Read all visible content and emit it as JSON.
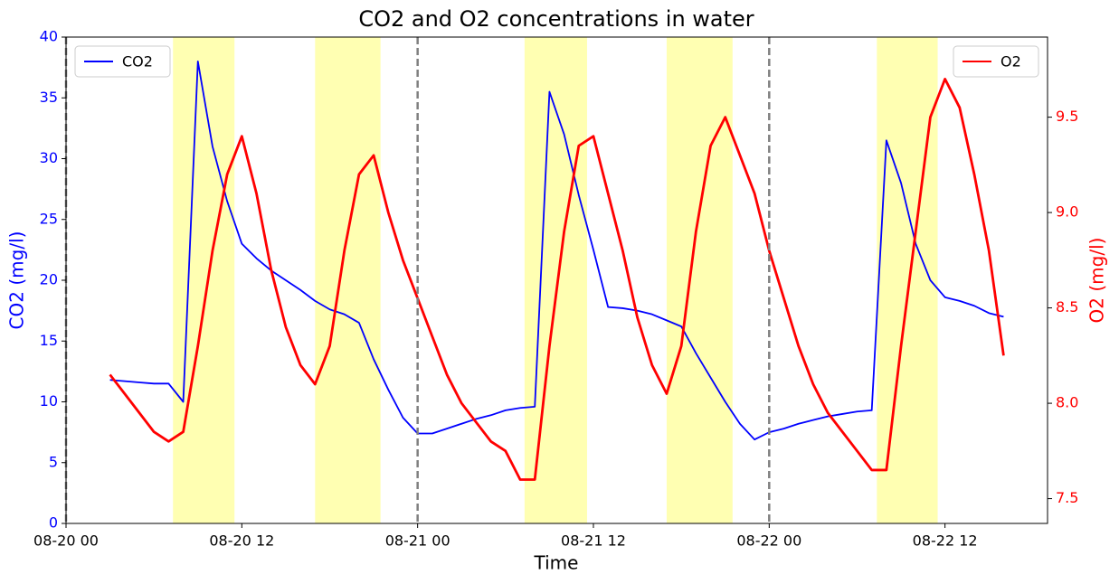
{
  "chart_data": {
    "type": "line",
    "title": "CO2 and O2 concentrations in water",
    "xlabel": "Time",
    "ylabel": "CO2 (mg/l)",
    "y2label": "O2 (mg/l)",
    "x": [
      "08-20 03",
      "08-20 04",
      "08-20 05",
      "08-20 06",
      "08-20 07",
      "08-20 08",
      "08-20 09",
      "08-20 10",
      "08-20 11",
      "08-20 12",
      "08-20 13",
      "08-20 14",
      "08-20 15",
      "08-20 16",
      "08-20 17",
      "08-20 18",
      "08-20 19",
      "08-20 20",
      "08-20 21",
      "08-20 22",
      "08-20 23",
      "08-21 00",
      "08-21 01",
      "08-21 02",
      "08-21 03",
      "08-21 04",
      "08-21 05",
      "08-21 06",
      "08-21 07",
      "08-21 08",
      "08-21 09",
      "08-21 10",
      "08-21 11",
      "08-21 12",
      "08-21 13",
      "08-21 14",
      "08-21 15",
      "08-21 16",
      "08-21 17",
      "08-21 18",
      "08-21 19",
      "08-21 20",
      "08-21 21",
      "08-21 22",
      "08-21 23",
      "08-22 00",
      "08-22 01",
      "08-22 02",
      "08-22 03",
      "08-22 04",
      "08-22 05",
      "08-22 06",
      "08-22 07",
      "08-22 08",
      "08-22 09",
      "08-22 10",
      "08-22 11",
      "08-22 12",
      "08-22 13",
      "08-22 14",
      "08-22 15",
      "08-22 16"
    ],
    "series": [
      {
        "name": "CO2",
        "color": "#0000ff",
        "axis": "y",
        "legend": "upper left",
        "values": [
          11.8,
          11.7,
          11.6,
          11.5,
          11.5,
          10.0,
          38.0,
          31.0,
          26.5,
          23.0,
          21.8,
          20.8,
          20.0,
          19.2,
          18.3,
          17.6,
          17.2,
          16.5,
          13.5,
          11.0,
          8.7,
          7.4,
          7.4,
          7.8,
          8.2,
          8.6,
          8.9,
          9.3,
          9.5,
          9.6,
          35.5,
          32.0,
          27.0,
          22.5,
          17.8,
          17.7,
          17.5,
          17.2,
          16.7,
          16.2,
          14.0,
          12.0,
          10.0,
          8.2,
          6.9,
          7.5,
          7.8,
          8.2,
          8.5,
          8.8,
          9.0,
          9.2,
          9.3,
          31.5,
          28.0,
          23.0,
          20.0,
          18.6,
          18.3,
          17.9,
          17.3,
          17.0
        ]
      },
      {
        "name": "O2",
        "color": "#ff0000",
        "axis": "y2",
        "legend": "upper right",
        "values": [
          8.15,
          8.05,
          7.95,
          7.85,
          7.8,
          7.85,
          8.3,
          8.8,
          9.2,
          9.4,
          9.1,
          8.7,
          8.4,
          8.2,
          8.1,
          8.3,
          8.8,
          9.2,
          9.3,
          9.0,
          8.75,
          8.55,
          8.35,
          8.15,
          8.0,
          7.9,
          7.8,
          7.75,
          7.6,
          7.6,
          8.3,
          8.9,
          9.35,
          9.4,
          9.1,
          8.8,
          8.45,
          8.2,
          8.05,
          8.3,
          8.9,
          9.35,
          9.5,
          9.3,
          9.1,
          8.8,
          8.55,
          8.3,
          8.1,
          7.95,
          7.85,
          7.75,
          7.65,
          7.65,
          8.3,
          8.9,
          9.5,
          9.7,
          9.55,
          9.2,
          8.8,
          8.25
        ]
      }
    ],
    "xlim": [
      "08-20 00",
      "08-22 19"
    ],
    "xticks": [
      "08-20 00",
      "08-20 12",
      "08-21 00",
      "08-21 12",
      "08-22 00",
      "08-22 12"
    ],
    "ylim": [
      0,
      40
    ],
    "yticks": [
      0,
      5,
      10,
      15,
      20,
      25,
      30,
      35,
      40
    ],
    "y2lim": [
      7.37,
      9.92
    ],
    "y2ticks": [
      7.5,
      {
        "value": 8,
        "label": "8.0"
      },
      8.5,
      {
        "value": 9,
        "label": "9.0"
      },
      9.5
    ],
    "spans": [
      [
        "08-20 07:18",
        "08-20 11:30"
      ],
      [
        "08-20 17:00",
        "08-20 21:28"
      ],
      [
        "08-21 07:18",
        "08-21 11:34"
      ],
      [
        "08-21 17:00",
        "08-21 21:30"
      ],
      [
        "08-22 07:21",
        "08-22 11:30"
      ]
    ],
    "span_color": "#ffff00",
    "vlines": [
      "08-20 00",
      "08-21 00",
      "08-22 00"
    ],
    "vline_color": "#808080"
  }
}
